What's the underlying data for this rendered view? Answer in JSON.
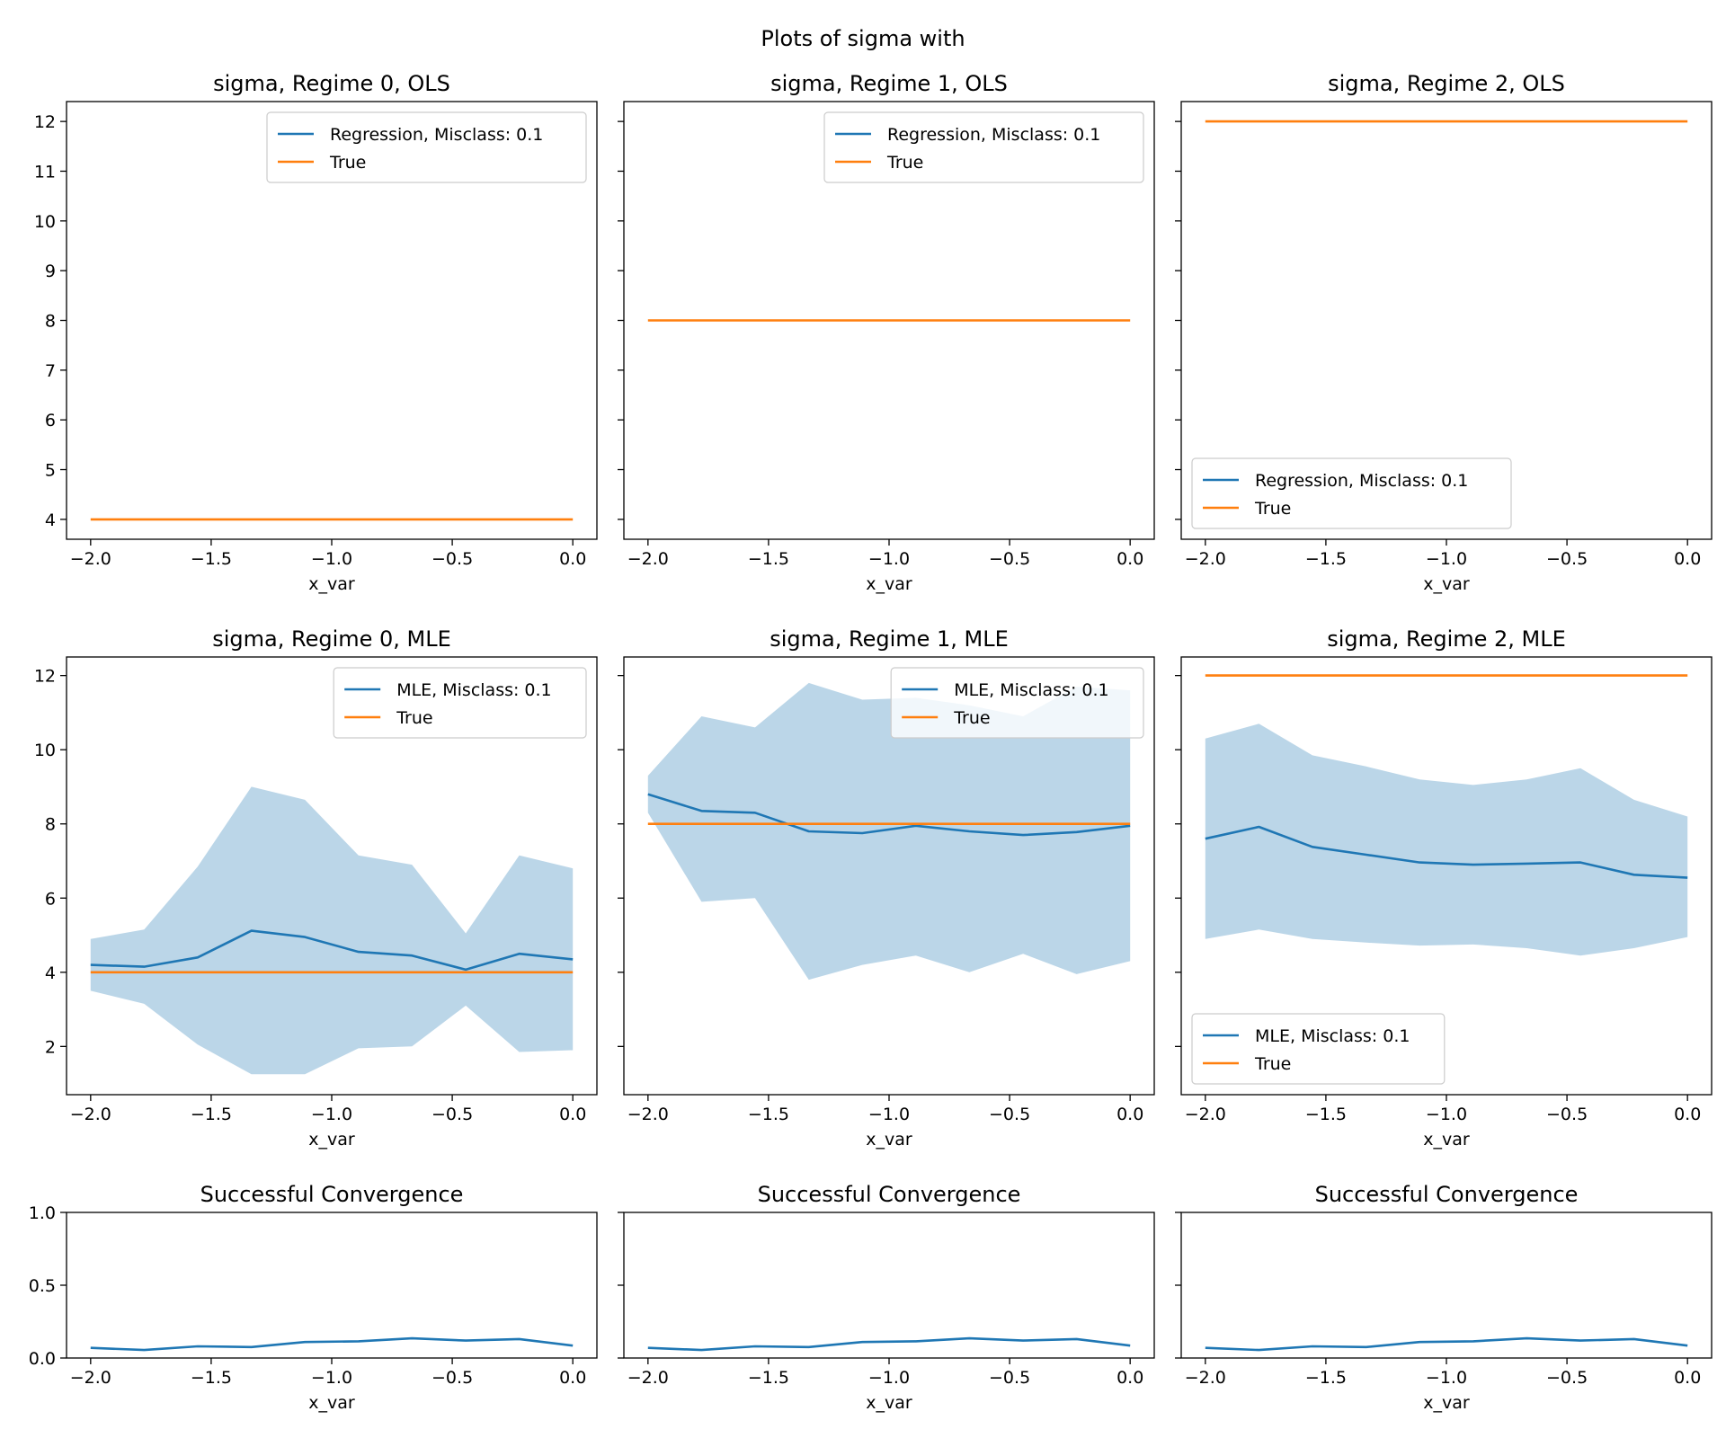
{
  "figure": {
    "title": "Plots of sigma with",
    "colors": {
      "regression": "#1f77b4",
      "true": "#ff7f0e",
      "band": "#1f77b4"
    }
  },
  "chart_data": [
    {
      "id": "ols-0",
      "type": "line",
      "title": "sigma, Regime 0, OLS",
      "xlabel": "x_var",
      "ylabel": "",
      "xlim": [
        -2.1,
        0.1
      ],
      "ylim": [
        3.6,
        12.4
      ],
      "xticks": [
        -2.0,
        -1.5,
        -1.0,
        -0.5,
        0.0
      ],
      "xtick_labels": [
        "−2.0",
        "−1.5",
        "−1.0",
        "−0.5",
        "0.0"
      ],
      "yticks": [
        4,
        5,
        6,
        7,
        8,
        9,
        10,
        11,
        12
      ],
      "ytick_labels": [
        "4",
        "5",
        "6",
        "7",
        "8",
        "9",
        "10",
        "11",
        "12"
      ],
      "show_yticklabels": true,
      "legend": "upper-right",
      "series": [
        {
          "name": "Regression, Misclass: 0.1",
          "color": "#1f77b4",
          "x": [],
          "y": []
        },
        {
          "name": "True",
          "color": "#ff7f0e",
          "x": [
            -2.0,
            0.0
          ],
          "y": [
            4,
            4
          ]
        }
      ]
    },
    {
      "id": "ols-1",
      "type": "line",
      "title": "sigma, Regime 1, OLS",
      "xlabel": "x_var",
      "ylabel": "",
      "xlim": [
        -2.1,
        0.1
      ],
      "ylim": [
        3.6,
        12.4
      ],
      "xticks": [
        -2.0,
        -1.5,
        -1.0,
        -0.5,
        0.0
      ],
      "xtick_labels": [
        "−2.0",
        "−1.5",
        "−1.0",
        "−0.5",
        "0.0"
      ],
      "yticks": [
        4,
        5,
        6,
        7,
        8,
        9,
        10,
        11,
        12
      ],
      "ytick_labels": [
        "4",
        "5",
        "6",
        "7",
        "8",
        "9",
        "10",
        "11",
        "12"
      ],
      "show_yticklabels": false,
      "legend": "upper-right",
      "series": [
        {
          "name": "Regression, Misclass: 0.1",
          "color": "#1f77b4",
          "x": [],
          "y": []
        },
        {
          "name": "True",
          "color": "#ff7f0e",
          "x": [
            -2.0,
            0.0
          ],
          "y": [
            8,
            8
          ]
        }
      ]
    },
    {
      "id": "ols-2",
      "type": "line",
      "title": "sigma, Regime 2, OLS",
      "xlabel": "x_var",
      "ylabel": "",
      "xlim": [
        -2.1,
        0.1
      ],
      "ylim": [
        3.6,
        12.4
      ],
      "xticks": [
        -2.0,
        -1.5,
        -1.0,
        -0.5,
        0.0
      ],
      "xtick_labels": [
        "−2.0",
        "−1.5",
        "−1.0",
        "−0.5",
        "0.0"
      ],
      "yticks": [
        4,
        5,
        6,
        7,
        8,
        9,
        10,
        11,
        12
      ],
      "ytick_labels": [
        "4",
        "5",
        "6",
        "7",
        "8",
        "9",
        "10",
        "11",
        "12"
      ],
      "show_yticklabels": false,
      "legend": "lower-left",
      "series": [
        {
          "name": "Regression, Misclass: 0.1",
          "color": "#1f77b4",
          "x": [],
          "y": []
        },
        {
          "name": "True",
          "color": "#ff7f0e",
          "x": [
            -2.0,
            0.0
          ],
          "y": [
            12,
            12
          ]
        }
      ]
    },
    {
      "id": "mle-0",
      "type": "line",
      "title": "sigma, Regime 0, MLE",
      "xlabel": "x_var",
      "ylabel": "",
      "xlim": [
        -2.1,
        0.1
      ],
      "ylim": [
        0.7,
        12.5
      ],
      "xticks": [
        -2.0,
        -1.5,
        -1.0,
        -0.5,
        0.0
      ],
      "xtick_labels": [
        "−2.0",
        "−1.5",
        "−1.0",
        "−0.5",
        "0.0"
      ],
      "yticks": [
        2,
        4,
        6,
        8,
        10,
        12
      ],
      "ytick_labels": [
        "2",
        "4",
        "6",
        "8",
        "10",
        "12"
      ],
      "show_yticklabels": true,
      "legend": "upper-right",
      "band": {
        "x": [
          -2.0,
          -1.778,
          -1.556,
          -1.333,
          -1.111,
          -0.889,
          -0.667,
          -0.444,
          -0.222,
          0.0
        ],
        "lower": [
          3.5,
          3.15,
          2.05,
          1.25,
          1.25,
          1.95,
          2.0,
          3.1,
          1.85,
          1.9
        ],
        "upper": [
          4.9,
          5.15,
          6.85,
          9.0,
          8.65,
          7.15,
          6.9,
          5.05,
          7.15,
          6.8
        ]
      },
      "series": [
        {
          "name": "MLE, Misclass: 0.1",
          "color": "#1f77b4",
          "x": [
            -2.0,
            -1.778,
            -1.556,
            -1.333,
            -1.111,
            -0.889,
            -0.667,
            -0.444,
            -0.222,
            0.0
          ],
          "y": [
            4.2,
            4.15,
            4.4,
            5.12,
            4.95,
            4.55,
            4.45,
            4.07,
            4.5,
            4.35
          ]
        },
        {
          "name": "True",
          "color": "#ff7f0e",
          "x": [
            -2.0,
            0.0
          ],
          "y": [
            4,
            4
          ]
        }
      ]
    },
    {
      "id": "mle-1",
      "type": "line",
      "title": "sigma, Regime 1, MLE",
      "xlabel": "x_var",
      "ylabel": "",
      "xlim": [
        -2.1,
        0.1
      ],
      "ylim": [
        0.7,
        12.5
      ],
      "xticks": [
        -2.0,
        -1.5,
        -1.0,
        -0.5,
        0.0
      ],
      "xtick_labels": [
        "−2.0",
        "−1.5",
        "−1.0",
        "−0.5",
        "0.0"
      ],
      "yticks": [
        2,
        4,
        6,
        8,
        10,
        12
      ],
      "ytick_labels": [
        "2",
        "4",
        "6",
        "8",
        "10",
        "12"
      ],
      "show_yticklabels": false,
      "legend": "upper-right",
      "band": {
        "x": [
          -2.0,
          -1.778,
          -1.556,
          -1.333,
          -1.111,
          -0.889,
          -0.667,
          -0.444,
          -0.222,
          0.0
        ],
        "lower": [
          8.3,
          5.9,
          6.0,
          3.8,
          4.2,
          4.45,
          4.0,
          4.5,
          3.95,
          4.3
        ],
        "upper": [
          9.3,
          10.9,
          10.6,
          11.8,
          11.35,
          11.4,
          11.2,
          10.9,
          11.7,
          11.6
        ]
      },
      "series": [
        {
          "name": "MLE, Misclass: 0.1",
          "color": "#1f77b4",
          "x": [
            -2.0,
            -1.778,
            -1.556,
            -1.333,
            -1.111,
            -0.889,
            -0.667,
            -0.444,
            -0.222,
            0.0
          ],
          "y": [
            8.8,
            8.35,
            8.3,
            7.8,
            7.75,
            7.95,
            7.8,
            7.7,
            7.78,
            7.95
          ]
        },
        {
          "name": "True",
          "color": "#ff7f0e",
          "x": [
            -2.0,
            0.0
          ],
          "y": [
            8,
            8
          ]
        }
      ]
    },
    {
      "id": "mle-2",
      "type": "line",
      "title": "sigma, Regime 2, MLE",
      "xlabel": "x_var",
      "ylabel": "",
      "xlim": [
        -2.1,
        0.1
      ],
      "ylim": [
        0.7,
        12.5
      ],
      "xticks": [
        -2.0,
        -1.5,
        -1.0,
        -0.5,
        0.0
      ],
      "xtick_labels": [
        "−2.0",
        "−1.5",
        "−1.0",
        "−0.5",
        "0.0"
      ],
      "yticks": [
        2,
        4,
        6,
        8,
        10,
        12
      ],
      "ytick_labels": [
        "2",
        "4",
        "6",
        "8",
        "10",
        "12"
      ],
      "show_yticklabels": false,
      "legend": "lower-left",
      "band": {
        "x": [
          -2.0,
          -1.778,
          -1.556,
          -1.333,
          -1.111,
          -0.889,
          -0.667,
          -0.444,
          -0.222,
          0.0
        ],
        "lower": [
          4.9,
          5.15,
          4.9,
          4.8,
          4.72,
          4.75,
          4.65,
          4.45,
          4.65,
          4.95
        ],
        "upper": [
          10.3,
          10.7,
          9.85,
          9.55,
          9.2,
          9.05,
          9.2,
          9.5,
          8.65,
          8.2
        ]
      },
      "series": [
        {
          "name": "MLE, Misclass: 0.1",
          "color": "#1f77b4",
          "x": [
            -2.0,
            -1.778,
            -1.556,
            -1.333,
            -1.111,
            -0.889,
            -0.667,
            -0.444,
            -0.222,
            0.0
          ],
          "y": [
            7.6,
            7.92,
            7.38,
            7.17,
            6.96,
            6.9,
            6.93,
            6.96,
            6.63,
            6.55
          ]
        },
        {
          "name": "True",
          "color": "#ff7f0e",
          "x": [
            -2.0,
            0.0
          ],
          "y": [
            12,
            12
          ]
        }
      ]
    },
    {
      "id": "conv-0",
      "type": "line",
      "title": "Successful Convergence",
      "xlabel": "x_var",
      "ylabel": "",
      "xlim": [
        -2.1,
        0.1
      ],
      "ylim": [
        0.0,
        1.0
      ],
      "xticks": [
        -2.0,
        -1.5,
        -1.0,
        -0.5,
        0.0
      ],
      "xtick_labels": [
        "−2.0",
        "−1.5",
        "−1.0",
        "−0.5",
        "0.0"
      ],
      "yticks": [
        0.0,
        0.5,
        1.0
      ],
      "ytick_labels": [
        "0.0",
        "0.5",
        "1.0"
      ],
      "show_yticklabels": true,
      "legend": "none",
      "series": [
        {
          "name": "",
          "color": "#1f77b4",
          "x": [
            -2.0,
            -1.778,
            -1.556,
            -1.333,
            -1.111,
            -0.889,
            -0.667,
            -0.444,
            -0.222,
            0.0
          ],
          "y": [
            0.07,
            0.055,
            0.08,
            0.075,
            0.11,
            0.115,
            0.135,
            0.12,
            0.13,
            0.085
          ]
        }
      ]
    },
    {
      "id": "conv-1",
      "type": "line",
      "title": "Successful Convergence",
      "xlabel": "x_var",
      "ylabel": "",
      "xlim": [
        -2.1,
        0.1
      ],
      "ylim": [
        0.0,
        1.0
      ],
      "xticks": [
        -2.0,
        -1.5,
        -1.0,
        -0.5,
        0.0
      ],
      "xtick_labels": [
        "−2.0",
        "−1.5",
        "−1.0",
        "−0.5",
        "0.0"
      ],
      "yticks": [
        0.0,
        0.5,
        1.0
      ],
      "ytick_labels": [
        "0.0",
        "0.5",
        "1.0"
      ],
      "show_yticklabels": false,
      "legend": "none",
      "series": [
        {
          "name": "",
          "color": "#1f77b4",
          "x": [
            -2.0,
            -1.778,
            -1.556,
            -1.333,
            -1.111,
            -0.889,
            -0.667,
            -0.444,
            -0.222,
            0.0
          ],
          "y": [
            0.07,
            0.055,
            0.08,
            0.075,
            0.11,
            0.115,
            0.135,
            0.12,
            0.13,
            0.085
          ]
        }
      ]
    },
    {
      "id": "conv-2",
      "type": "line",
      "title": "Successful Convergence",
      "xlabel": "x_var",
      "ylabel": "",
      "xlim": [
        -2.1,
        0.1
      ],
      "ylim": [
        0.0,
        1.0
      ],
      "xticks": [
        -2.0,
        -1.5,
        -1.0,
        -0.5,
        0.0
      ],
      "xtick_labels": [
        "−2.0",
        "−1.5",
        "−1.0",
        "−0.5",
        "0.0"
      ],
      "yticks": [
        0.0,
        0.5,
        1.0
      ],
      "ytick_labels": [
        "0.0",
        "0.5",
        "1.0"
      ],
      "show_yticklabels": false,
      "legend": "none",
      "series": [
        {
          "name": "",
          "color": "#1f77b4",
          "x": [
            -2.0,
            -1.778,
            -1.556,
            -1.333,
            -1.111,
            -0.889,
            -0.667,
            -0.444,
            -0.222,
            0.0
          ],
          "y": [
            0.07,
            0.055,
            0.08,
            0.075,
            0.11,
            0.115,
            0.135,
            0.12,
            0.13,
            0.085
          ]
        }
      ]
    }
  ]
}
